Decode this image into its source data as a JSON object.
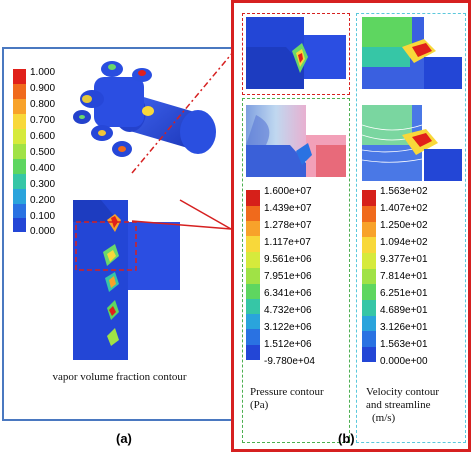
{
  "panel_labels": {
    "a": "(a)",
    "b": "(b)"
  },
  "vapor": {
    "caption": "vapor volume fraction contour",
    "ticks": [
      "1.000",
      "0.900",
      "0.800",
      "0.700",
      "0.600",
      "0.500",
      "0.400",
      "0.300",
      "0.200",
      "0.100",
      "0.000"
    ]
  },
  "pressure": {
    "caption_line1": "Pressure contour",
    "caption_line2": "(Pa)",
    "ticks": [
      "1.600e+07",
      "1.439e+07",
      "1.278e+07",
      "1.117e+07",
      "9.561e+06",
      "7.951e+06",
      "6.341e+06",
      "4.732e+06",
      "3.122e+06",
      "1.512e+06",
      "-9.780e+04"
    ]
  },
  "velocity": {
    "caption_line1": "Velocity contour",
    "caption_line2": "and streamline",
    "caption_line3": "(m/s)",
    "ticks": [
      "1.563e+02",
      "1.407e+02",
      "1.250e+02",
      "1.094e+02",
      "9.377e+01",
      "7.814e+01",
      "6.251e+01",
      "4.689e+01",
      "3.126e+01",
      "1.563e+01",
      "0.000e+00"
    ]
  },
  "colors": {
    "panel_a_border": "#4a78c0",
    "panel_b_border": "#d62020",
    "pressure_frame": "#4caf50",
    "velocity_frame": "#5bc8dc",
    "zoom_frame": "#d62020",
    "contour_blue": "#2346d6"
  }
}
